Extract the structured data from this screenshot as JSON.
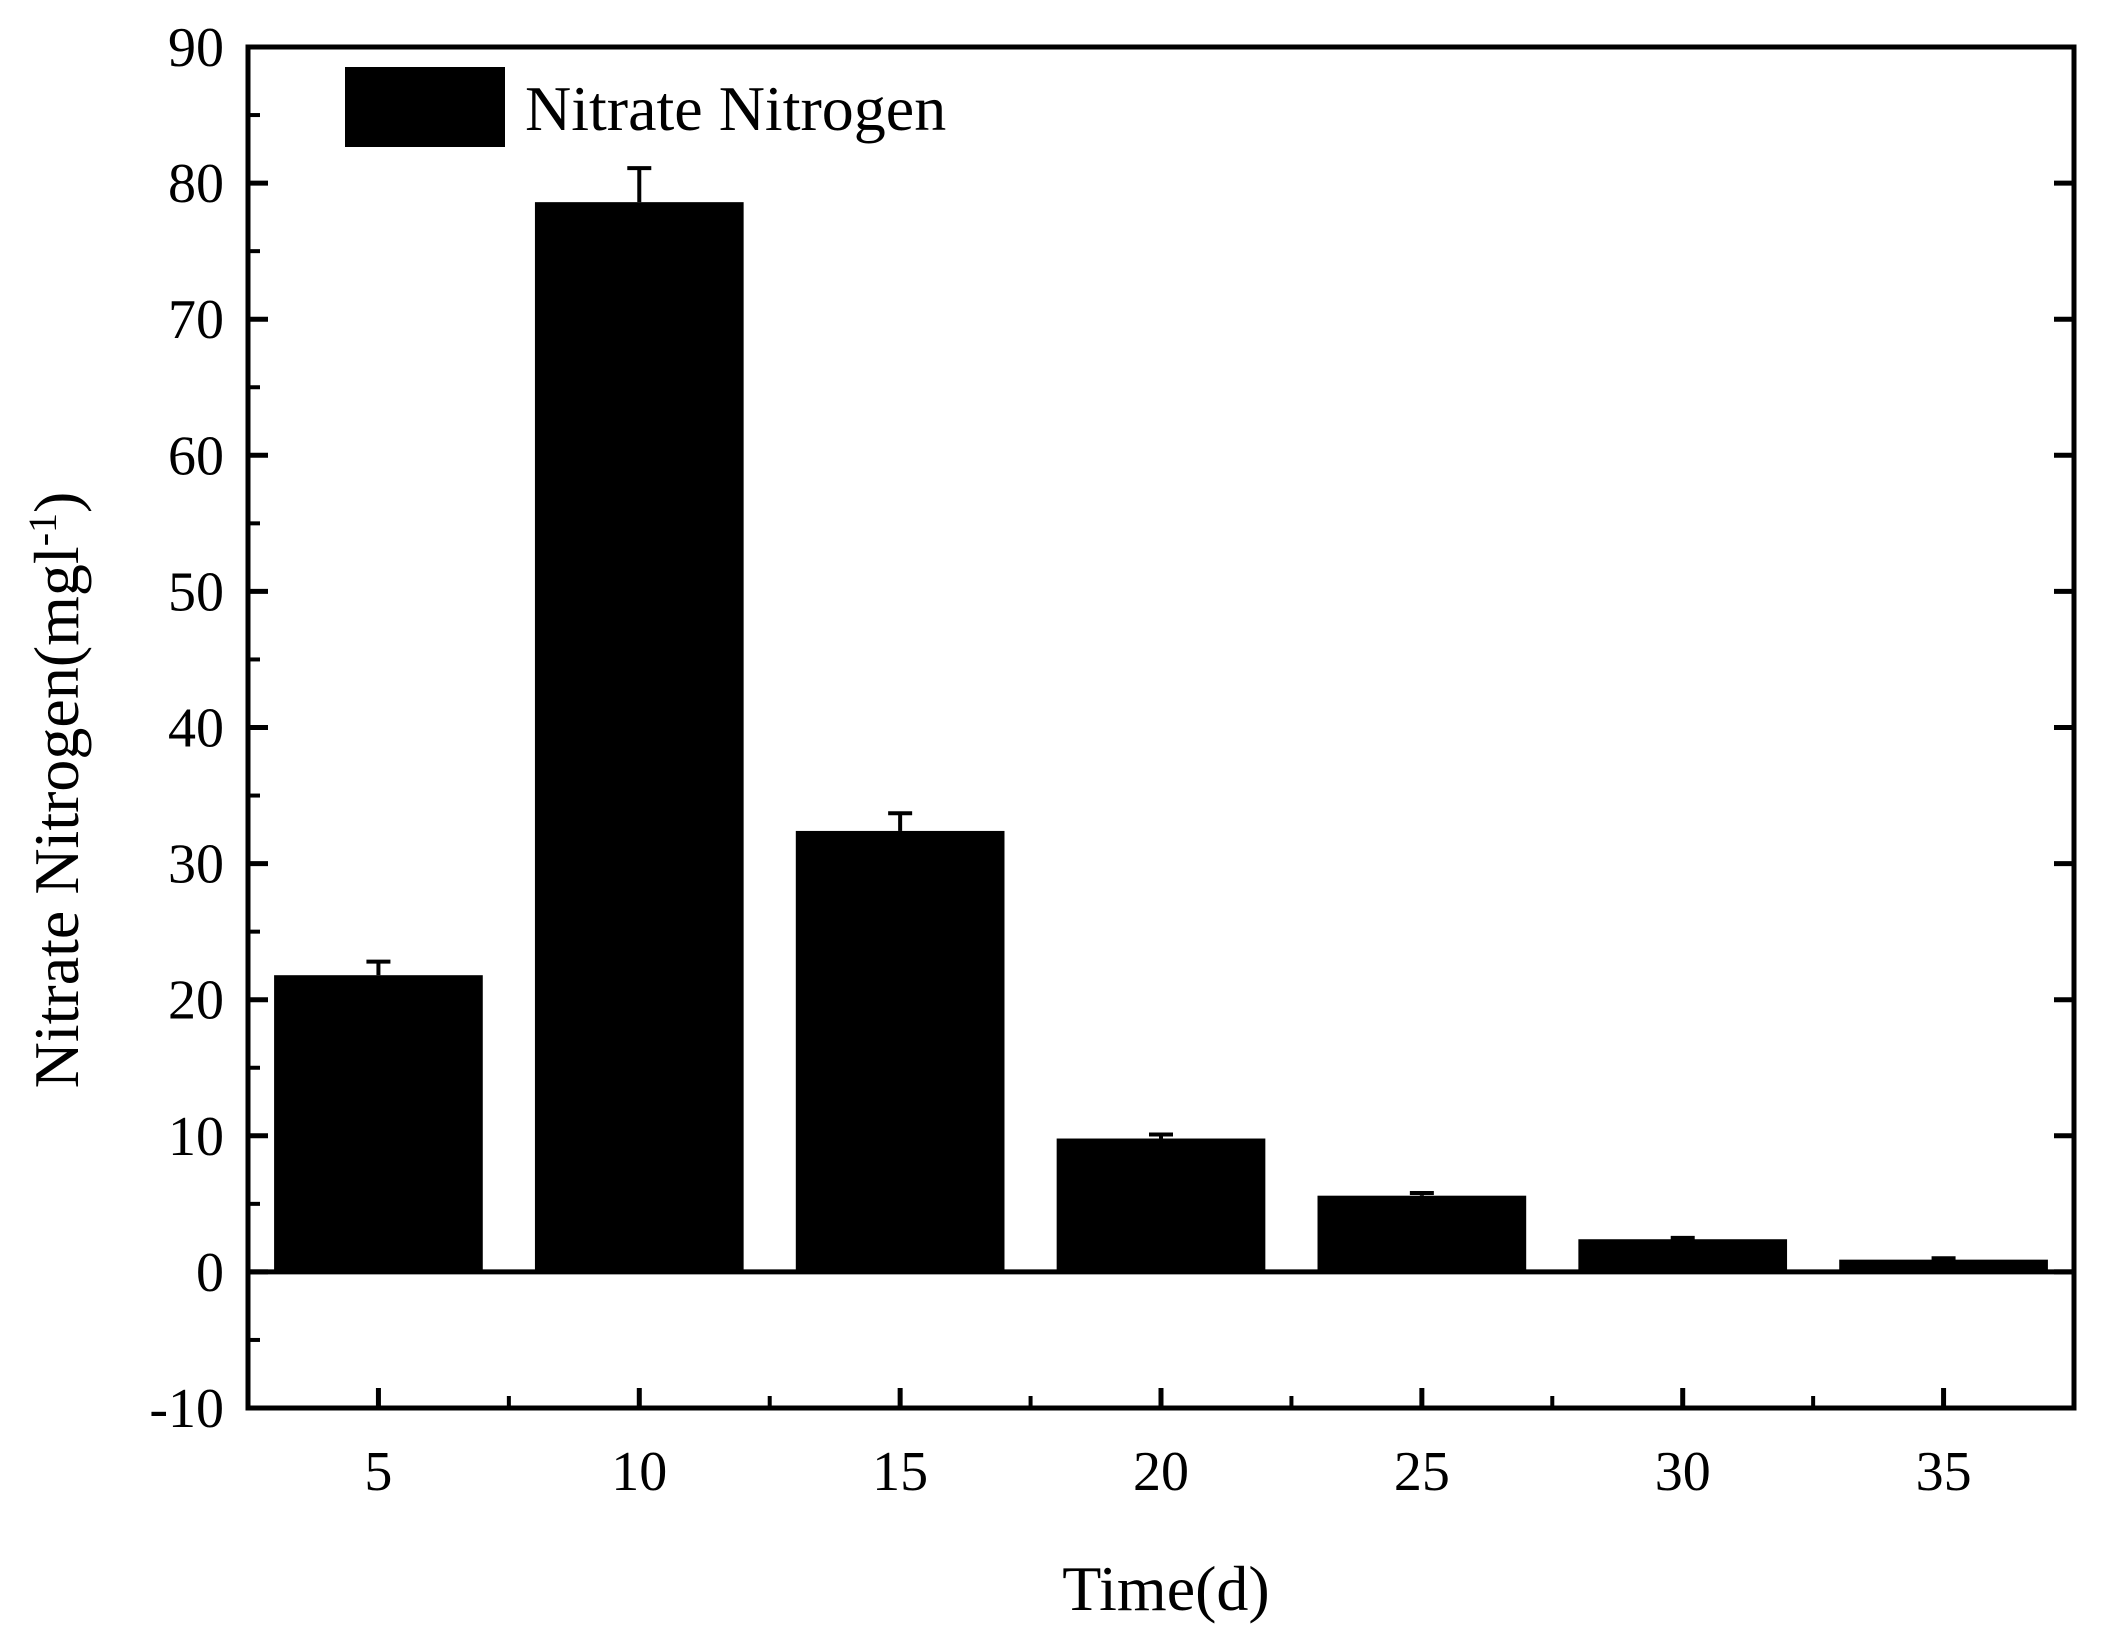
{
  "chart_data": {
    "type": "bar",
    "title": "",
    "xlabel": "Time(d)",
    "ylabel": "Nitrate Nitrogen(mgl",
    "ylabel_superscript": "-1",
    "ylabel_suffix": ")",
    "categories": [
      "5",
      "10",
      "15",
      "20",
      "25",
      "30",
      "35"
    ],
    "series": [
      {
        "name": "Nitrate Nitrogen",
        "color": "#000000",
        "values": [
          21.8,
          78.6,
          32.4,
          9.8,
          5.6,
          2.4,
          0.9
        ],
        "errors": [
          1.0,
          2.5,
          1.3,
          0.3,
          0.2,
          0.1,
          0.1
        ]
      }
    ],
    "ylim": [
      -10,
      90
    ],
    "yticks": [
      "-10",
      "0",
      "10",
      "20",
      "30",
      "40",
      "50",
      "60",
      "70",
      "80",
      "90"
    ],
    "zero_line": true,
    "grid": false,
    "legend_position": "top-left"
  }
}
